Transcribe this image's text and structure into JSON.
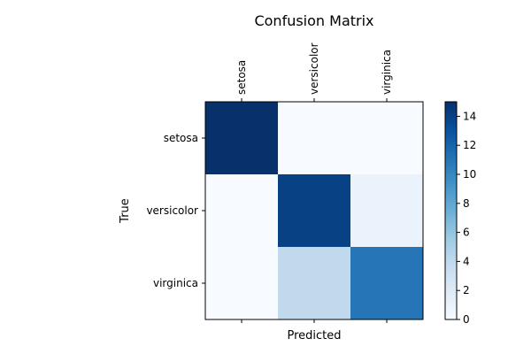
{
  "chart_data": {
    "type": "heatmap",
    "title": "Confusion Matrix",
    "xlabel": "Predicted",
    "ylabel": "True",
    "x_categories": [
      "setosa",
      "versicolor",
      "virginica"
    ],
    "y_categories": [
      "setosa",
      "versicolor",
      "virginica"
    ],
    "x_tick_position": "top",
    "values": [
      [
        15,
        0,
        0
      ],
      [
        0,
        14,
        1
      ],
      [
        0,
        4,
        11
      ]
    ],
    "colormap": "Blues",
    "colorbar": {
      "min": 0,
      "max": 15,
      "ticks": [
        0,
        2,
        4,
        6,
        8,
        10,
        12,
        14
      ]
    },
    "grid": false
  }
}
